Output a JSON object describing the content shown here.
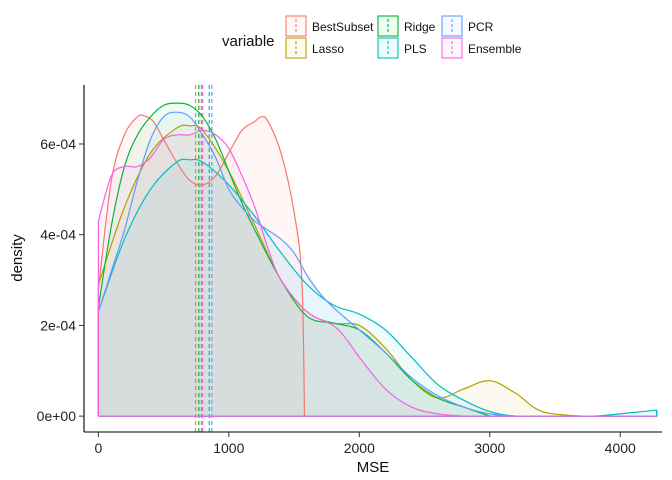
{
  "chart_data": {
    "type": "density",
    "xlabel": "MSE",
    "ylabel": "density",
    "xlim": [
      -110,
      4320
    ],
    "ylim": [
      -3.5e-05,
      0.00073
    ],
    "x_ticks": [
      0,
      1000,
      2000,
      3000,
      4000
    ],
    "x_tick_labels": [
      "0",
      "1000",
      "2000",
      "3000",
      "4000"
    ],
    "y_ticks": [
      0,
      0.0002,
      0.0004,
      0.0006
    ],
    "y_tick_labels": [
      "0e+00",
      "2e-04",
      "4e-04",
      "6e-04"
    ],
    "grid": false,
    "legend": {
      "title": "variable",
      "placement": "top",
      "entries": [
        "BestSubset",
        "Lasso",
        "Ridge",
        "PLS",
        "PCR",
        "Ensemble"
      ]
    },
    "series": [
      {
        "name": "BestSubset",
        "color": "#F8766D",
        "mean_line": 745,
        "x": [
          0,
          100,
          200,
          300,
          350,
          420,
          500,
          600,
          700,
          800,
          900,
          1000,
          1100,
          1200,
          1250,
          1300,
          1400,
          1500,
          1560,
          1580
        ],
        "y": [
          0.00028,
          0.00052,
          0.00062,
          0.00066,
          0.000662,
          0.00065,
          0.00061,
          0.00056,
          0.00052,
          0.00051,
          0.00053,
          0.00058,
          0.00063,
          0.00065,
          0.00066,
          0.00065,
          0.00058,
          0.00045,
          0.0003,
          0.0
        ]
      },
      {
        "name": "Lasso",
        "color": "#B79F00",
        "mean_line": 790,
        "x": [
          0,
          200,
          400,
          600,
          700,
          800,
          1000,
          1200,
          1400,
          1600,
          1800,
          2000,
          2200,
          2400,
          2600,
          2800,
          3000,
          3200,
          3400,
          3700
        ],
        "y": [
          0.00029,
          0.00046,
          0.00058,
          0.000635,
          0.00064,
          0.00063,
          0.00054,
          0.00042,
          0.0003,
          0.00023,
          0.000205,
          0.0002,
          0.00015,
          8e-05,
          4e-05,
          6e-05,
          7.8e-05,
          5e-05,
          1e-05,
          0.0
        ]
      },
      {
        "name": "Ridge",
        "color": "#00BA38",
        "mean_line": 770,
        "x": [
          0,
          100,
          200,
          300,
          400,
          500,
          600,
          700,
          800,
          900,
          1000,
          1100,
          1200,
          1400,
          1600,
          1800,
          2000,
          2200,
          2400,
          2600,
          2800,
          3000
        ],
        "y": [
          0.00024,
          0.00042,
          0.00055,
          0.00062,
          0.00066,
          0.000685,
          0.00069,
          0.000685,
          0.00066,
          0.00061,
          0.00054,
          0.00047,
          0.00041,
          0.0003,
          0.00022,
          0.000205,
          0.00019,
          0.00014,
          8e-05,
          4e-05,
          2e-05,
          0.0
        ]
      },
      {
        "name": "PLS",
        "color": "#00BFC4",
        "mean_line": 850,
        "x": [
          0,
          200,
          400,
          600,
          700,
          800,
          1000,
          1200,
          1400,
          1600,
          1800,
          2000,
          2200,
          2400,
          2600,
          2800,
          3000,
          3200,
          3500,
          3800,
          4100,
          4280
        ],
        "y": [
          0.00023,
          0.00039,
          0.0005,
          0.00056,
          0.000565,
          0.00056,
          0.00051,
          0.00044,
          0.00036,
          0.00029,
          0.000245,
          0.000225,
          0.00019,
          0.00013,
          7e-05,
          3.5e-05,
          1e-05,
          0.0,
          0.0,
          0.0,
          8e-06,
          1.3e-05
        ]
      },
      {
        "name": "PCR",
        "color": "#619CFF",
        "mean_line": 870,
        "x": [
          0,
          100,
          200,
          300,
          400,
          500,
          600,
          700,
          800,
          900,
          1000,
          1100,
          1200,
          1300,
          1400,
          1500,
          1600,
          1700,
          1800,
          2000,
          2200,
          2400,
          2600,
          2800,
          3000,
          3200
        ],
        "y": [
          0.00023,
          0.00032,
          0.00041,
          0.00052,
          0.00061,
          0.00066,
          0.00067,
          0.00066,
          0.00062,
          0.00057,
          0.0005,
          0.00046,
          0.00043,
          0.00041,
          0.00039,
          0.00036,
          0.00031,
          0.00027,
          0.00024,
          0.00019,
          0.00014,
          8.5e-05,
          4.5e-05,
          2e-05,
          5e-06,
          0.0
        ]
      },
      {
        "name": "Ensemble",
        "color": "#F564E3",
        "mean_line": 800,
        "x": [
          0,
          100,
          200,
          300,
          400,
          500,
          600,
          700,
          800,
          900,
          1000,
          1100,
          1200,
          1300,
          1400,
          1600,
          1800,
          1900,
          2000,
          2200,
          2400,
          2600,
          2800
        ],
        "y": [
          0.00043,
          0.00053,
          0.00055,
          0.00055,
          0.00057,
          0.00061,
          0.00062,
          0.00062,
          0.00063,
          0.00062,
          0.00059,
          0.00053,
          0.00046,
          0.00037,
          0.0003,
          0.00023,
          0.0002,
          0.00017,
          0.00013,
          6e-05,
          2e-05,
          5e-06,
          0.0
        ]
      }
    ],
    "ribbon_x_end": 4280
  }
}
